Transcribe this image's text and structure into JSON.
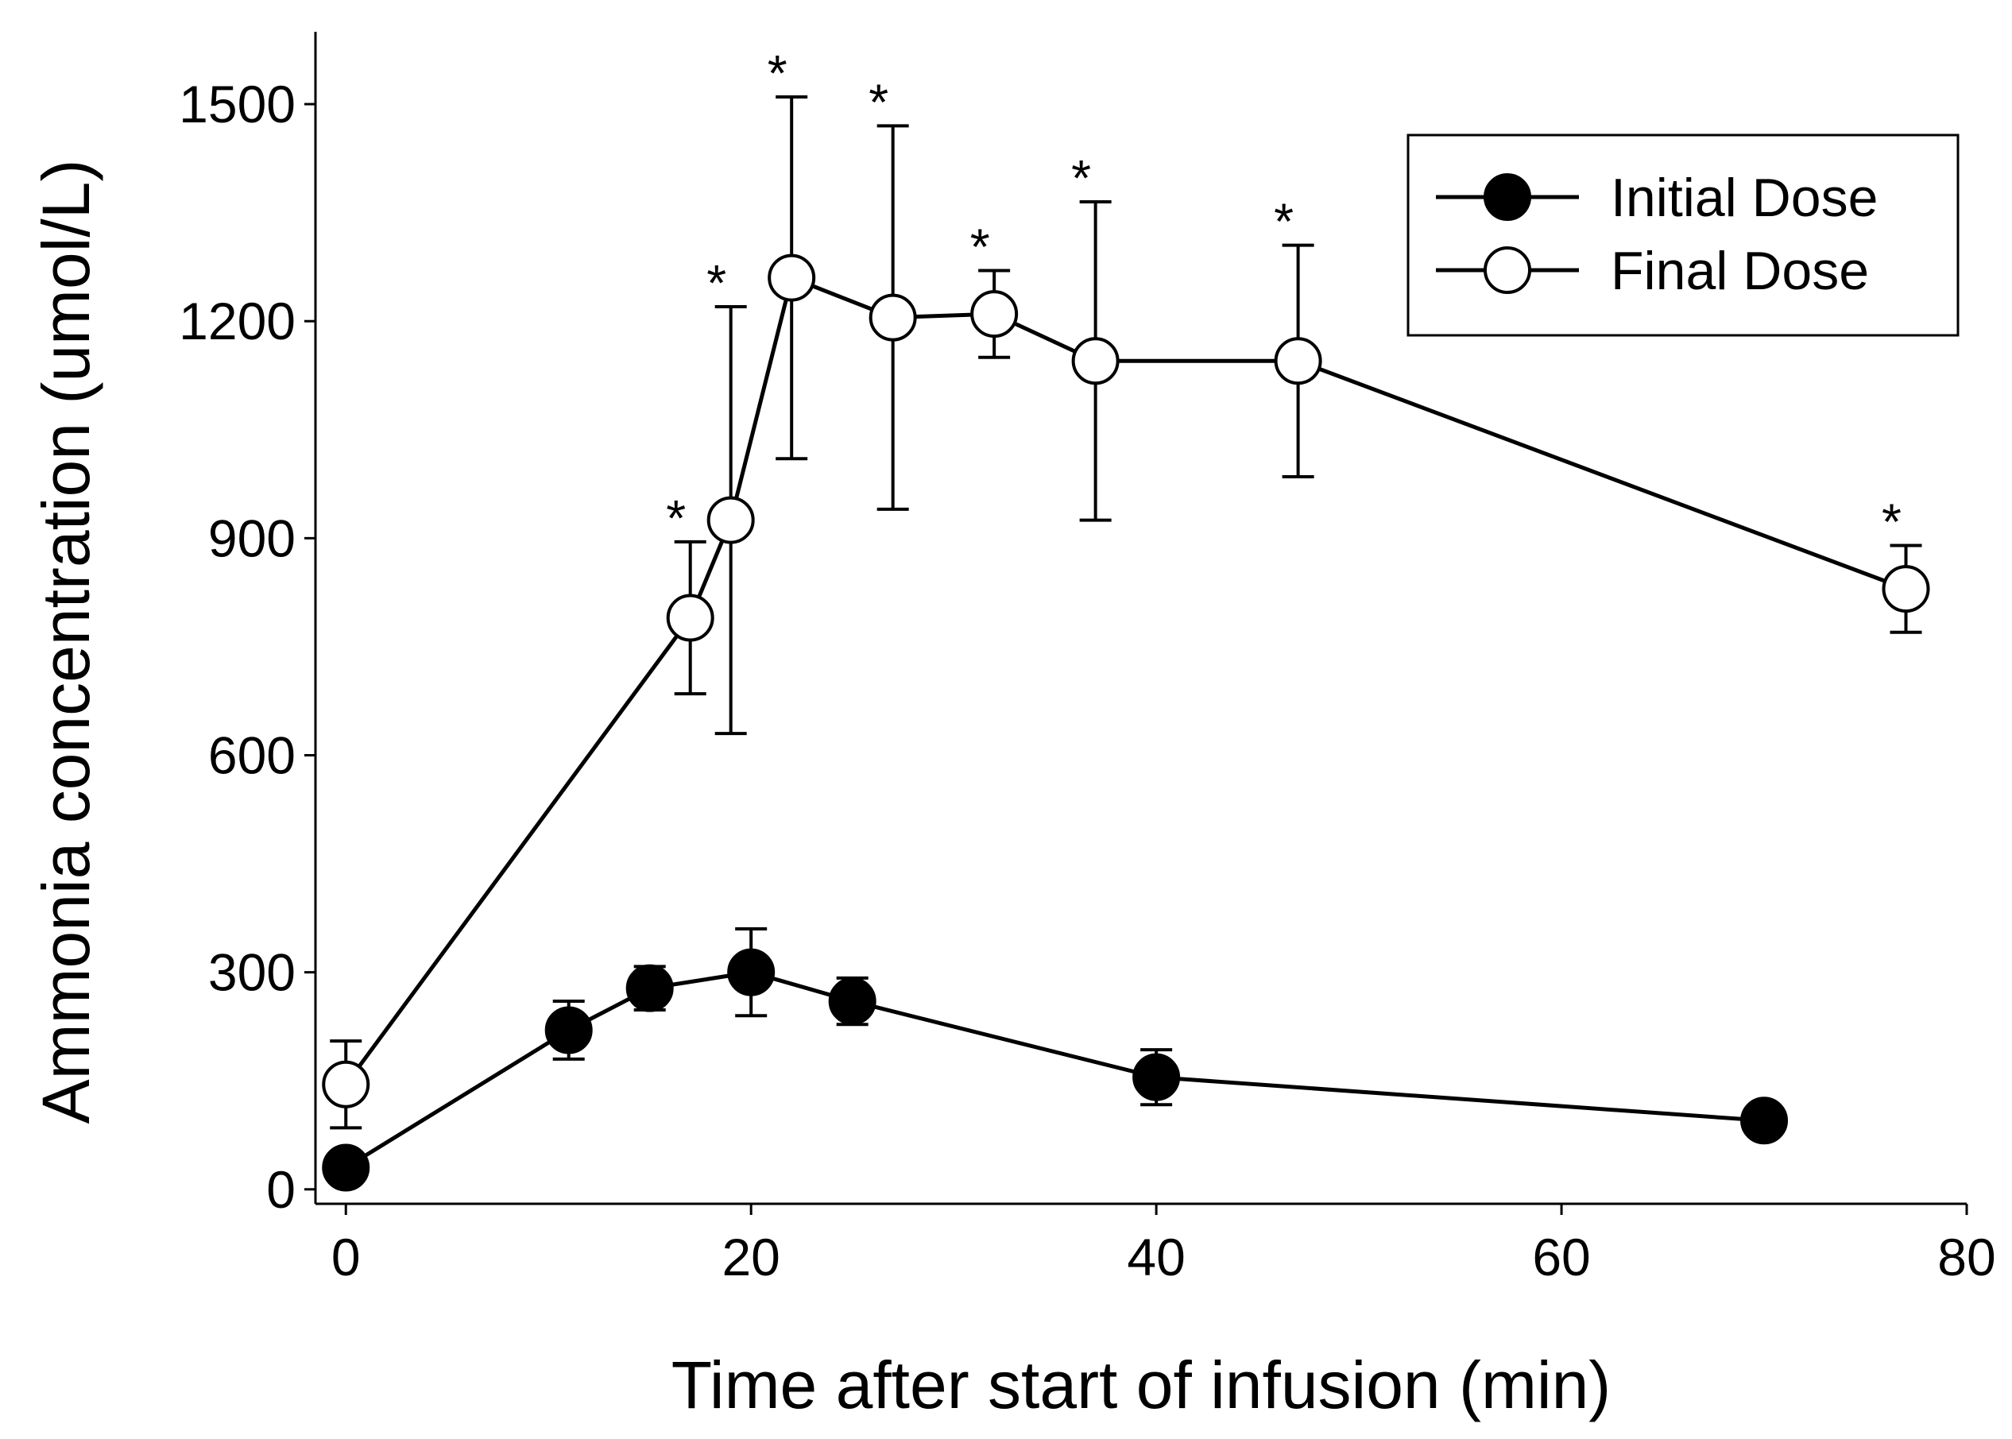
{
  "chart_data": {
    "type": "line",
    "xlabel": "Time after start of infusion (min)",
    "ylabel": "Ammonia concentration (umol/L)",
    "xlim": [
      -1.5,
      80
    ],
    "ylim": [
      -20,
      1600
    ],
    "xticks": [
      0,
      20,
      40,
      60,
      80
    ],
    "yticks": [
      0,
      300,
      600,
      900,
      1200,
      1500
    ],
    "grid": false,
    "legend_position": "top-right",
    "significance_marker": "*",
    "series": [
      {
        "name": "Initial Dose",
        "marker": "filled-circle",
        "points": [
          {
            "x": 0,
            "y": 30,
            "err_up": 0,
            "err_down": 0
          },
          {
            "x": 11,
            "y": 220,
            "err_up": 40,
            "err_down": 40
          },
          {
            "x": 15,
            "y": 278,
            "err_up": 30,
            "err_down": 30
          },
          {
            "x": 20,
            "y": 300,
            "err_up": 60,
            "err_down": 60
          },
          {
            "x": 25,
            "y": 260,
            "err_up": 32,
            "err_down": 32
          },
          {
            "x": 40,
            "y": 155,
            "err_up": 38,
            "err_down": 38
          },
          {
            "x": 70,
            "y": 95,
            "err_up": 18,
            "err_down": 18
          }
        ]
      },
      {
        "name": "Final Dose",
        "marker": "open-circle",
        "points": [
          {
            "x": 0,
            "y": 145,
            "err_up": 60,
            "err_down": 60,
            "significant": false
          },
          {
            "x": 17,
            "y": 790,
            "err_up": 105,
            "err_down": 105,
            "significant": true
          },
          {
            "x": 19,
            "y": 925,
            "err_up": 295,
            "err_down": 295,
            "significant": true
          },
          {
            "x": 22,
            "y": 1260,
            "err_up": 250,
            "err_down": 250,
            "significant": true
          },
          {
            "x": 27,
            "y": 1205,
            "err_up": 265,
            "err_down": 265,
            "significant": true
          },
          {
            "x": 32,
            "y": 1210,
            "err_up": 60,
            "err_down": 60,
            "significant": true
          },
          {
            "x": 37,
            "y": 1145,
            "err_up": 220,
            "err_down": 220,
            "significant": true
          },
          {
            "x": 47,
            "y": 1145,
            "err_up": 160,
            "err_down": 160,
            "significant": true
          },
          {
            "x": 77,
            "y": 830,
            "err_up": 60,
            "err_down": 60,
            "significant": true
          }
        ]
      }
    ]
  }
}
